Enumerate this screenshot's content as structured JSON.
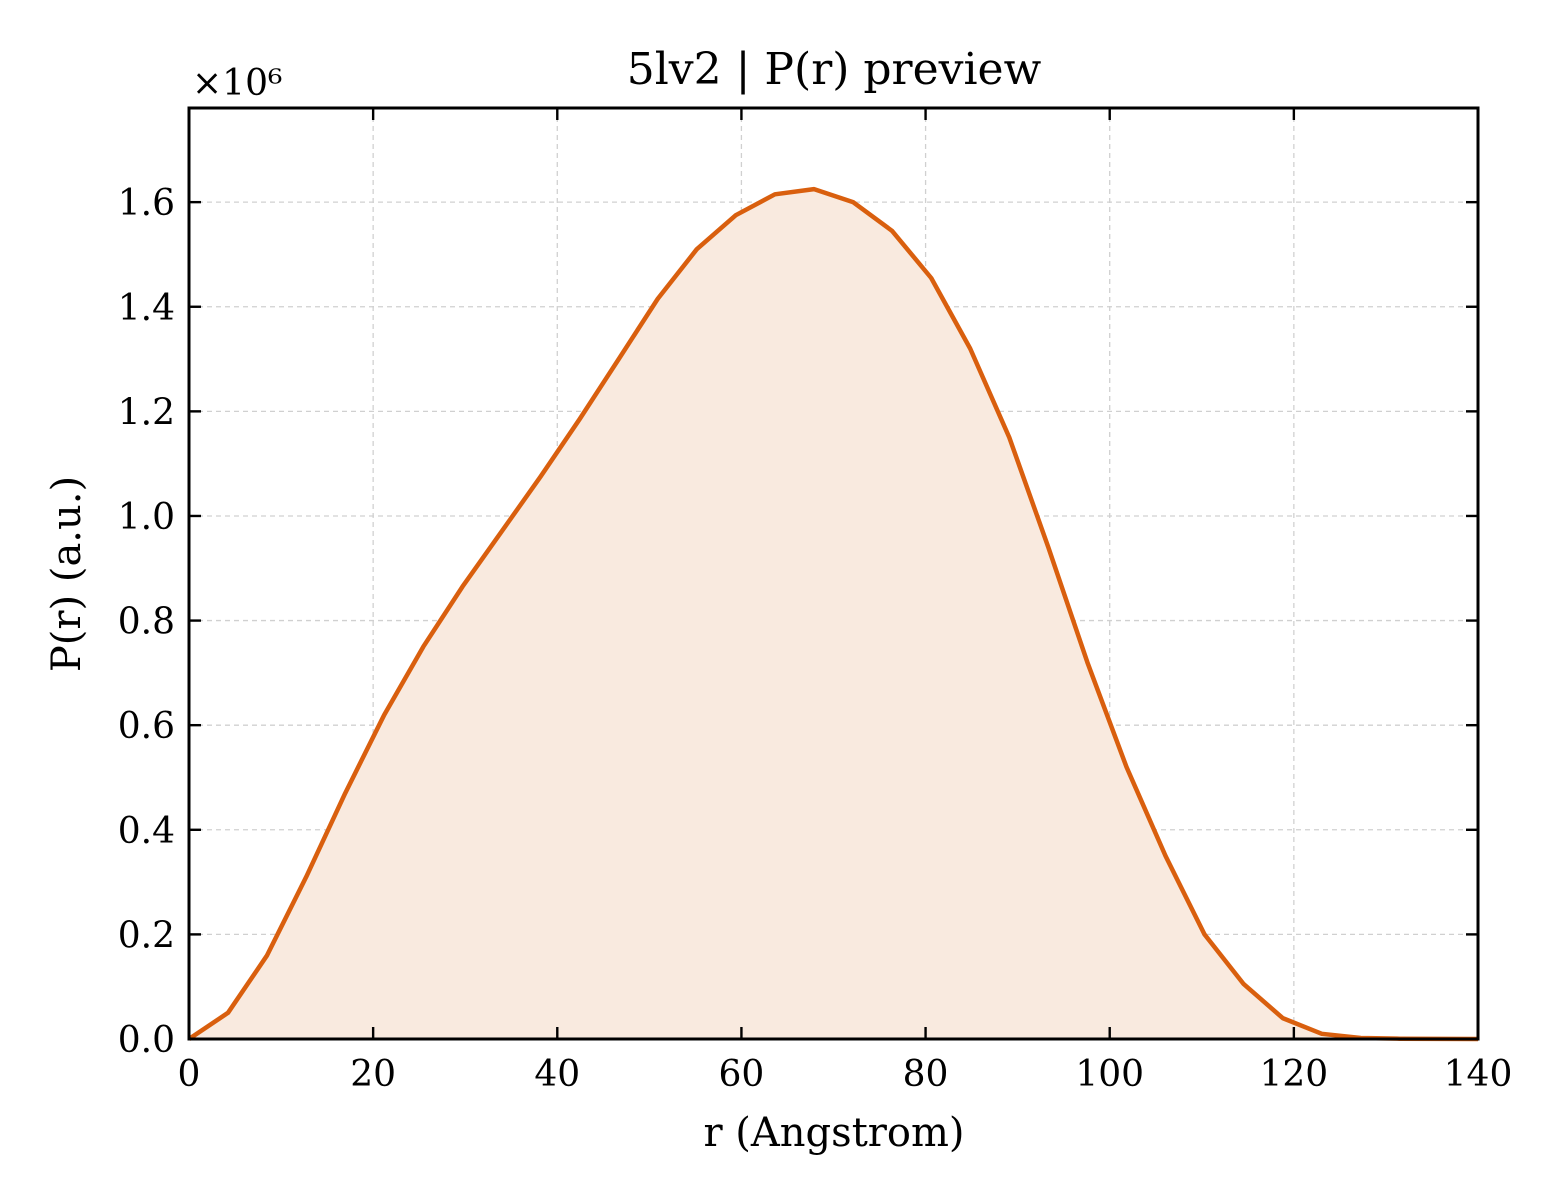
{
  "chart_data": {
    "type": "area",
    "title": "5lv2 | P(r) preview",
    "xlabel": "r (Angstrom)",
    "ylabel": "P(r) (a.u.)",
    "y_multiplier_label": "×10⁶",
    "xlim": [
      0,
      140
    ],
    "ylim": [
      0,
      1.78
    ],
    "x_ticks": [
      0,
      20,
      40,
      60,
      80,
      100,
      120,
      140
    ],
    "x_tick_labels": [
      "0",
      "20",
      "40",
      "60",
      "80",
      "100",
      "120",
      "140"
    ],
    "y_ticks": [
      0,
      0.2,
      0.4,
      0.6,
      0.8,
      1.0,
      1.2,
      1.4,
      1.6
    ],
    "y_tick_labels": [
      "0.0",
      "0.2",
      "0.4",
      "0.6",
      "0.8",
      "1.0",
      "1.2",
      "1.4",
      "1.6"
    ],
    "grid": true,
    "line_color": "#d95f0e",
    "fill_color": "#f9eadf",
    "series": [
      {
        "x": [
          0,
          4.24,
          8.48,
          12.73,
          16.97,
          21.21,
          25.45,
          29.7,
          33.94,
          38.18,
          42.42,
          46.67,
          50.91,
          55.15,
          59.39,
          63.64,
          67.88,
          72.12,
          76.36,
          80.61,
          84.85,
          89.09,
          93.33,
          97.58,
          101.82,
          106.06,
          110.3,
          114.55,
          118.79,
          123.03,
          127.27,
          131.52,
          135.76,
          140
        ],
        "y": [
          0.0,
          0.05,
          0.16,
          0.31,
          0.47,
          0.62,
          0.75,
          0.865,
          0.97,
          1.075,
          1.185,
          1.3,
          1.415,
          1.51,
          1.575,
          1.615,
          1.625,
          1.6,
          1.545,
          1.455,
          1.32,
          1.15,
          0.94,
          0.72,
          0.52,
          0.35,
          0.2,
          0.105,
          0.04,
          0.01,
          0.002,
          0.0005,
          0.0002,
          0.0
        ]
      }
    ]
  }
}
